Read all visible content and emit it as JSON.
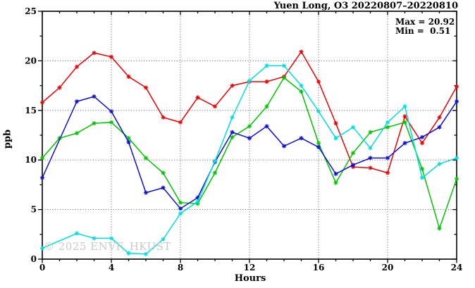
{
  "title": "Yuen Long, O3 20220807–20220810",
  "legend": {
    "max_line": "Max = 20.92",
    "min_line": "Min =  0.51"
  },
  "watermark": "© 2025 ENVF, HKUST",
  "chart_data": {
    "type": "line",
    "title": "Yuen Long, O3 20220807–20220810",
    "xlabel": "Hours",
    "ylabel": "ppb",
    "xlim": [
      0,
      24
    ],
    "ylim": [
      0,
      25
    ],
    "x_major_ticks": [
      0,
      4,
      8,
      12,
      16,
      20,
      24
    ],
    "x_minor_step": 1,
    "y_major_ticks": [
      0,
      5,
      10,
      15,
      20,
      25
    ],
    "y_minor_step": 2.5,
    "grid": {
      "style": "dotted",
      "x_gridlines": [
        4,
        8,
        12,
        16,
        20
      ],
      "y_gridlines": [
        5,
        10,
        15,
        20
      ]
    },
    "legend_position": "top-right-inside",
    "marker": "asterisk",
    "hours": [
      0,
      1,
      2,
      3,
      4,
      5,
      6,
      7,
      8,
      9,
      10,
      11,
      12,
      13,
      14,
      15,
      16,
      17,
      18,
      19,
      20,
      21,
      22,
      23,
      24
    ],
    "series": [
      {
        "name": "series-red",
        "color": "#ee0000",
        "values": [
          15.8,
          17.3,
          19.4,
          20.8,
          20.4,
          18.4,
          17.3,
          14.3,
          13.8,
          16.3,
          15.4,
          17.5,
          17.9,
          17.9,
          18.4,
          20.92,
          17.9,
          13.7,
          9.3,
          9.2,
          8.7,
          14.4,
          11.7,
          14.3,
          17.4
        ]
      },
      {
        "name": "series-green",
        "color": "#00c400",
        "values": [
          10.2,
          12.2,
          12.7,
          13.7,
          13.8,
          12.2,
          10.2,
          8.7,
          5.7,
          5.6,
          8.7,
          12.3,
          13.4,
          15.4,
          18.3,
          16.9,
          11.7,
          7.7,
          10.7,
          12.8,
          13.3,
          13.8,
          9.1,
          3.1,
          8.1
        ]
      },
      {
        "name": "series-blue",
        "color": "#0d0dd6",
        "values": [
          8.2,
          null,
          15.9,
          16.4,
          14.9,
          11.8,
          6.7,
          7.2,
          5.1,
          6.2,
          9.8,
          12.8,
          12.2,
          13.4,
          11.4,
          12.2,
          11.3,
          8.6,
          9.5,
          10.2,
          10.2,
          11.7,
          12.3,
          13.3,
          15.9
        ]
      },
      {
        "name": "series-cyan",
        "color": "#00dede",
        "values": [
          1.1,
          null,
          2.6,
          2.1,
          2.1,
          0.6,
          0.51,
          2.0,
          4.6,
          5.8,
          9.9,
          14.3,
          18.0,
          19.5,
          19.5,
          17.5,
          14.9,
          12.2,
          13.3,
          11.2,
          13.8,
          15.4,
          8.2,
          9.6,
          10.2
        ]
      }
    ],
    "stats": {
      "max": 20.92,
      "min": 0.51
    }
  }
}
